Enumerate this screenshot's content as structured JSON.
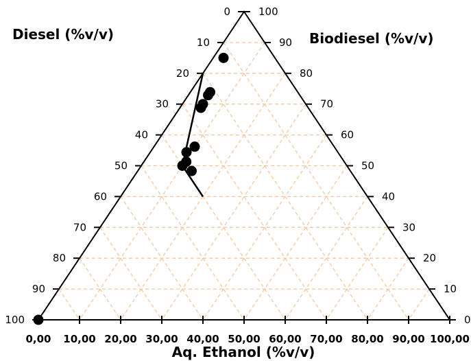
{
  "chart_data": {
    "type": "scatter",
    "subtype": "ternary",
    "axes": {
      "left": {
        "label": "Diesel (%v/v)",
        "ticks": [
          "0",
          "10",
          "20",
          "30",
          "40",
          "50",
          "60",
          "70",
          "80",
          "90",
          "100"
        ]
      },
      "right": {
        "label": "Biodiesel (%v/v)",
        "ticks": [
          "100",
          "90",
          "80",
          "70",
          "60",
          "50",
          "40",
          "30",
          "20",
          "10",
          "0"
        ]
      },
      "bottom": {
        "label": "Aq. Ethanol (%v/v)",
        "ticks": [
          "0,00",
          "10,00",
          "20,00",
          "30,00",
          "40,00",
          "50,00",
          "60,00",
          "70,00",
          "80,00",
          "90,00",
          "100,00"
        ]
      }
    },
    "grid": true,
    "grid_step": 10,
    "grid_color": "#f5c6a0",
    "point_color": "#000000",
    "line_color": "#000000",
    "points": [
      {
        "diesel": 100,
        "ethanol": 0
      },
      {
        "diesel": 12.5,
        "ethanol": 2.5
      },
      {
        "diesel": 21.3,
        "ethanol": 4.8
      },
      {
        "diesel": 22.3,
        "ethanol": 4.8
      },
      {
        "diesel": 25.0,
        "ethanol": 5.0
      },
      {
        "diesel": 26.1,
        "ethanol": 5.1
      },
      {
        "diesel": 33.9,
        "ethanol": 9.9
      },
      {
        "diesel": 36.8,
        "ethanol": 8.8
      },
      {
        "diesel": 38.4,
        "ethanol": 10.3
      },
      {
        "diesel": 38.6,
        "ethanol": 13.1
      },
      {
        "diesel": 40.0,
        "ethanol": 10.0
      }
    ],
    "boundary": [
      {
        "diesel": 20,
        "ethanol": 0
      },
      {
        "diesel": 40,
        "ethanol": 10
      },
      {
        "diesel": 40,
        "ethanol": 20
      }
    ]
  }
}
